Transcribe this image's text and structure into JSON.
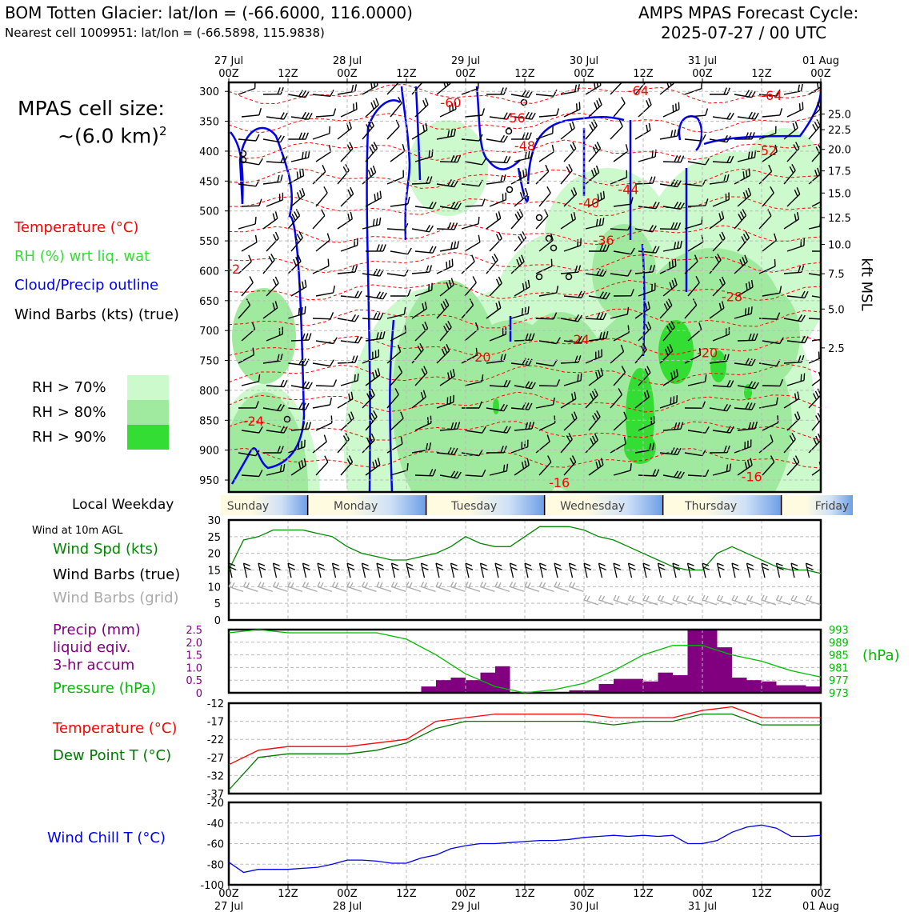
{
  "header": {
    "title_left": "BOM Totten Glacier: lat/lon = (-66.6000, 116.0000)",
    "subtitle_left": "Nearest cell 1009951: lat/lon = (-66.5898, 115.9838)",
    "title_right_1": "AMPS MPAS Forecast Cycle:",
    "title_right_2": "2025-07-27 / 00 UTC"
  },
  "side": {
    "cell_size_1": "MPAS cell size:",
    "cell_size_2": "~(6.0 km)",
    "cell_size_sup": "2",
    "legend_temp": "Temperature (°C)",
    "legend_rh": "RH (%) wrt liq. wat",
    "legend_cloud": "Cloud/Precip outline",
    "legend_wind": "Wind Barbs (kts) (true)",
    "rh70": "RH > 70%",
    "rh80": "RH > 80%",
    "rh90": "RH > 90%",
    "local_weekday": "Local Weekday",
    "wind10m": "Wind at 10m AGL",
    "wind_spd": "Wind Spd (kts)",
    "wind_barbs_true": "Wind Barbs (true)",
    "wind_barbs_grid": "Wind Barbs (grid)",
    "precip_1": "Precip (mm)",
    "precip_2": "liquid eqiv.",
    "precip_3": "3-hr accum",
    "pressure": "Pressure (hPa)",
    "temperature": "Temperature (°C)",
    "dewpoint": "Dew Point T (°C)",
    "windchill": "Wind Chill T (°C)",
    "kft_label": "kft MSL",
    "hpa_unit": "(hPa)"
  },
  "colors": {
    "rh70": "#ccfacc",
    "rh80": "#a0eaa0",
    "rh90": "#33dd33",
    "temp": "#ff0000",
    "cloud": "#0000ee",
    "precip": "#800080",
    "pressure": "#00bb00",
    "dewpoint": "#007700",
    "windchill": "#0000ee",
    "windspd": "#008800",
    "grid_barb": "#aaaaaa"
  },
  "time_axis": {
    "top_labels": [
      [
        "27 Jul",
        "00Z"
      ],
      [
        "",
        "12Z"
      ],
      [
        "28 Jul",
        "00Z"
      ],
      [
        "",
        "12Z"
      ],
      [
        "29 Jul",
        "00Z"
      ],
      [
        "",
        "12Z"
      ],
      [
        "30 Jul",
        "00Z"
      ],
      [
        "",
        "12Z"
      ],
      [
        "31 Jul",
        "00Z"
      ],
      [
        "",
        "12Z"
      ],
      [
        "01 Aug",
        "00Z"
      ]
    ],
    "bottom_labels": [
      [
        "00Z",
        "27 Jul"
      ],
      [
        "12Z",
        ""
      ],
      [
        "00Z",
        "28 Jul"
      ],
      [
        "12Z",
        ""
      ],
      [
        "00Z",
        "29 Jul"
      ],
      [
        "12Z",
        ""
      ],
      [
        "00Z",
        "30 Jul"
      ],
      [
        "12Z",
        ""
      ],
      [
        "00Z",
        "31 Jul"
      ],
      [
        "12Z",
        ""
      ],
      [
        "00Z",
        "01 Aug"
      ]
    ],
    "weekdays": [
      "Sunday",
      "Monday",
      "Tuesday",
      "Wednesday",
      "Thursday",
      "Friday"
    ]
  },
  "chart_data": [
    {
      "type": "heatmap",
      "name_hint": "time-height cross section",
      "x_hours": [
        0,
        120
      ],
      "pressure_ticks": [
        300,
        350,
        400,
        450,
        500,
        550,
        600,
        650,
        700,
        750,
        800,
        850,
        900,
        950
      ],
      "kft_ticks": [
        "25.0",
        "22.5",
        "20.0",
        "17.5",
        "15.0",
        "12.5",
        "10.0",
        "7.5",
        "5.0",
        "2.5"
      ],
      "kft_tick_pressures": [
        338,
        364,
        397,
        433,
        470,
        511,
        556,
        605,
        664,
        729
      ],
      "temp_labels": [
        {
          "text": "-60",
          "h": 45,
          "p": 320
        },
        {
          "text": "-56",
          "h": 58,
          "p": 345
        },
        {
          "text": "-48",
          "h": 60,
          "p": 392
        },
        {
          "text": "-44",
          "h": 81,
          "p": 465
        },
        {
          "text": "-40",
          "h": 73,
          "p": 488
        },
        {
          "text": "-36",
          "h": 76,
          "p": 550
        },
        {
          "text": "-64",
          "h": 83,
          "p": 300
        },
        {
          "text": "-64",
          "h": 110,
          "p": 308
        },
        {
          "text": "-52",
          "h": 109,
          "p": 400
        },
        {
          "text": "-28",
          "h": 102,
          "p": 644
        },
        {
          "text": "-24",
          "h": 71,
          "p": 716
        },
        {
          "text": "-20",
          "h": 51,
          "p": 745
        },
        {
          "text": "-20",
          "h": 97,
          "p": 738
        },
        {
          "text": "-24",
          "h": 5,
          "p": 852
        },
        {
          "text": "-16",
          "h": 67,
          "p": 955
        },
        {
          "text": "-16",
          "h": 106,
          "p": 945
        },
        {
          "text": "-2",
          "h": 1,
          "p": 598
        }
      ]
    },
    {
      "type": "line",
      "title": "Wind Spd (kts)",
      "x_hours": [
        0,
        3,
        6,
        9,
        12,
        15,
        18,
        21,
        24,
        27,
        30,
        33,
        36,
        39,
        42,
        45,
        48,
        51,
        54,
        57,
        60,
        63,
        66,
        69,
        72,
        75,
        78,
        81,
        84,
        87,
        90,
        93,
        96,
        99,
        102,
        105,
        108,
        111,
        114,
        117,
        120
      ],
      "values": [
        15,
        24,
        25,
        27,
        27,
        27,
        26,
        25,
        22,
        20,
        19,
        18,
        18,
        19,
        20,
        22,
        25,
        23,
        22,
        22,
        25,
        28,
        28,
        28,
        27,
        25,
        24,
        22,
        20,
        18,
        16,
        15,
        15,
        20,
        22,
        20,
        18,
        16,
        15,
        15,
        14
      ],
      "ylim": [
        0,
        30
      ],
      "yticks": [
        0,
        5,
        10,
        15,
        20,
        25,
        30
      ]
    },
    {
      "type": "bar",
      "title": "Precip (mm) / Pressure (hPa)",
      "precip_x_hours": [
        39,
        42,
        45,
        48,
        51,
        54,
        69,
        72,
        75,
        78,
        81,
        84,
        87,
        90,
        93,
        96,
        99,
        102,
        105,
        108,
        111,
        114,
        117
      ],
      "precip_values": [
        0.25,
        0.5,
        0.6,
        0.5,
        0.8,
        1.05,
        0.1,
        0.1,
        0.35,
        0.55,
        0.55,
        0.45,
        0.8,
        0.7,
        2.5,
        2.5,
        1.8,
        0.6,
        0.5,
        0.45,
        0.3,
        0.3,
        0.25
      ],
      "precip_ylim": [
        0,
        2.5
      ],
      "precip_yticks": [
        "0",
        "0.5",
        "1.0",
        "1.5",
        "2.0",
        "2.5"
      ],
      "pressure_x_hours": [
        0,
        6,
        12,
        18,
        24,
        30,
        36,
        42,
        48,
        54,
        60,
        66,
        72,
        78,
        84,
        90,
        96,
        102,
        108,
        114,
        120
      ],
      "pressure_values": [
        992,
        993,
        992,
        992,
        992,
        992,
        990,
        985,
        979,
        975,
        973,
        974,
        976,
        980,
        985,
        988,
        988,
        985,
        983,
        980,
        978
      ],
      "pressure_ylim": [
        973,
        993
      ],
      "pressure_yticks": [
        "993",
        "989",
        "985",
        "981",
        "977",
        "973"
      ]
    },
    {
      "type": "line",
      "title": "Temperature / Dew Point (°C)",
      "x_hours": [
        0,
        6,
        12,
        18,
        24,
        30,
        36,
        42,
        48,
        54,
        60,
        66,
        72,
        78,
        84,
        90,
        96,
        102,
        108,
        114,
        120
      ],
      "temperature": [
        -29,
        -25,
        -24,
        -24,
        -24,
        -23,
        -22,
        -17,
        -16,
        -15,
        -15,
        -15,
        -15,
        -16,
        -16,
        -16,
        -14,
        -13,
        -16,
        -16,
        -16
      ],
      "dewpoint": [
        -36,
        -27,
        -26,
        -26,
        -26,
        -25,
        -23,
        -19,
        -17,
        -17,
        -17,
        -17,
        -17,
        -18,
        -17,
        -17,
        -15,
        -15,
        -18,
        -18,
        -18
      ],
      "ylim": [
        -37,
        -12
      ],
      "yticks": [
        "-12",
        "-17",
        "-22",
        "-27",
        "-32",
        "-37"
      ]
    },
    {
      "type": "line",
      "title": "Wind Chill T (°C)",
      "x_hours": [
        0,
        3,
        6,
        9,
        12,
        15,
        18,
        21,
        24,
        27,
        30,
        33,
        36,
        39,
        42,
        45,
        48,
        51,
        54,
        57,
        60,
        63,
        66,
        69,
        72,
        75,
        78,
        81,
        84,
        87,
        90,
        93,
        96,
        99,
        102,
        105,
        108,
        111,
        114,
        117,
        120
      ],
      "values": [
        -78,
        -88,
        -85,
        -85,
        -85,
        -84,
        -83,
        -80,
        -76,
        -76,
        -77,
        -79,
        -79,
        -74,
        -71,
        -65,
        -62,
        -60,
        -60,
        -59,
        -58,
        -57,
        -57,
        -56,
        -54,
        -53,
        -52,
        -53,
        -52,
        -53,
        -52,
        -60,
        -60,
        -57,
        -49,
        -44,
        -42,
        -45,
        -53,
        -53,
        -52
      ],
      "ylim": [
        -100,
        -20
      ],
      "yticks": [
        "-20",
        "-40",
        "-60",
        "-80",
        "-100"
      ]
    }
  ]
}
